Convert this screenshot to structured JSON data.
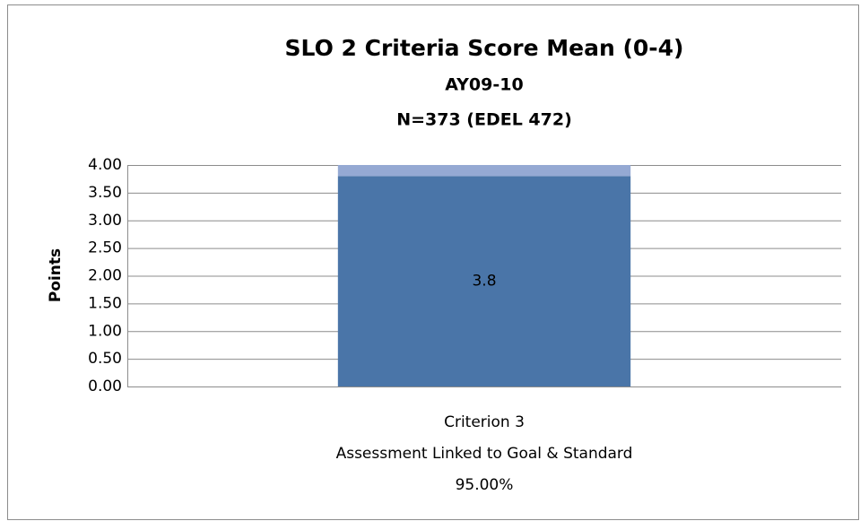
{
  "chart_data": {
    "type": "stacked_bar",
    "title": "SLO 2 Criteria Score Mean (0-4)",
    "subtitle": [
      "AY09-10",
      "N=373 (EDEL 472)"
    ],
    "ylabel": "Points",
    "categories": [
      [
        "Criterion 3",
        "Assessment Linked to Goal & Standard",
        "95.00%"
      ]
    ],
    "series": [
      {
        "color": "#4a75a8",
        "values": [
          3.8
        ]
      },
      {
        "color": "#95a9d3",
        "values": [
          0.2
        ]
      }
    ],
    "data_labels_series": 0,
    "ylim": [
      0,
      4
    ],
    "yticks": [
      {
        "value": 0,
        "label": "0.00"
      },
      {
        "value": 0.5,
        "label": "0.50"
      },
      {
        "value": 1,
        "label": "1.00"
      },
      {
        "value": 1.5,
        "label": "1.50"
      },
      {
        "value": 2,
        "label": "2.00"
      },
      {
        "value": 2.5,
        "label": "2.50"
      },
      {
        "value": 3,
        "label": "3.00"
      },
      {
        "value": 3.5,
        "label": "3.50"
      },
      {
        "value": 4,
        "label": "4.00"
      }
    ],
    "grid": true
  }
}
